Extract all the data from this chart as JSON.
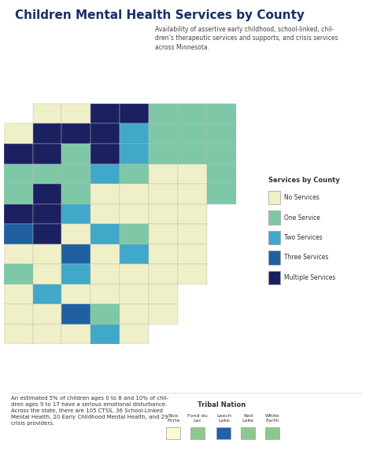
{
  "title": "Children Mental Health Services by County",
  "subtitle": "Availability of assertive early childhood, school-linked, chil-\ndren’s therapeutic services and supports, and crisis services\nacross Minnesota.",
  "footnote": "An estimated 5% of children ages 0 to 8 and 10% of chil-\ndren ages 9 to 17 have a serious emotional disturbance.\nAcross the state, there are 105 CTSS, 36 School-Linked\nMental Health, 20 Early Childhood Mental Health, and 29\ncrisis providers.",
  "legend_title": "Services by County",
  "legend_items": [
    "No Services",
    "One Service",
    "Two Services",
    "Three Services",
    "Multiple Services"
  ],
  "legend_colors": [
    "#f0f0c8",
    "#7ec8a8",
    "#40a8c8",
    "#2060a0",
    "#1a2060"
  ],
  "tribal_title": "Tribal Nation",
  "tribal_nations": [
    "Bois\nForte",
    "Fond du\nLac",
    "Leech\nLake",
    "Red\nLake",
    "White\nEarth"
  ],
  "tribal_colors": [
    "#fffacd",
    "#8dc88d",
    "#2060b0",
    "#8dc88d",
    "#8dc88d"
  ],
  "bg_color": "#ffffff",
  "title_color": "#1a2d6b",
  "county_colors": {
    "Aitkin": "#7ec8a8",
    "Anoka": "#2060a0",
    "Becker": "#1a2060",
    "Beltrami": "#1a2060",
    "Benton": "#40a8c8",
    "Big Stone": "#f0f0c8",
    "Blue Earth": "#40a8c8",
    "Brown": "#f0f0c8",
    "Carlton": "#40a8c8",
    "Carver": "#2060a0",
    "Cass": "#7ec8a8",
    "Chippewa": "#f0f0c8",
    "Chisago": "#7ec8a8",
    "Clay": "#1a2060",
    "Clearwater": "#7ec8a8",
    "Cook": "#7ec8a8",
    "Cottonwood": "#f0f0c8",
    "Crow Wing": "#2060a0",
    "Dakota": "#2060a0",
    "Dodge": "#f0f0c8",
    "Douglas": "#7ec8a8",
    "Faribault": "#f0f0c8",
    "Fillmore": "#f0f0c8",
    "Freeborn": "#f0f0c8",
    "Goodhue": "#7ec8a8",
    "Grant": "#f0f0c8",
    "Hennepin": "#1a2060",
    "Houston": "#f0f0c8",
    "Hubbard": "#7ec8a8",
    "Isanti": "#7ec8a8",
    "Itasca": "#7ec8a8",
    "Jackson": "#f0f0c8",
    "Kanabec": "#f0f0c8",
    "Kandiyohi": "#40a8c8",
    "Kittson": "#f0f0c8",
    "Koochiching": "#7ec8a8",
    "Lac qui Parle": "#f0f0c8",
    "Lake": "#7ec8a8",
    "Lake of the Woods": "#7ec8a8",
    "Le Sueur": "#7ec8a8",
    "Lincoln": "#f0f0c8",
    "Lyon": "#7ec8a8",
    "Mahnomen": "#f0f0c8",
    "Marshall": "#f0f0c8",
    "Martin": "#f0f0c8",
    "McLeod": "#f0f0c8",
    "Meeker": "#f0f0c8",
    "Mille Lacs": "#40a8c8",
    "Morrison": "#7ec8a8",
    "Mower": "#40a8c8",
    "Murray": "#f0f0c8",
    "Nicollet": "#40a8c8",
    "Nobles": "#f0f0c8",
    "Norman": "#f0f0c8",
    "Olmsted": "#2060a0",
    "Otter Tail": "#7ec8a8",
    "Pennington": "#7ec8a8",
    "Pine": "#7ec8a8",
    "Pipestone": "#f0f0c8",
    "Polk": "#40a8c8",
    "Pope": "#f0f0c8",
    "Ramsey": "#1a2060",
    "Red Lake": "#f0f0c8",
    "Redwood": "#f0f0c8",
    "Renville": "#f0f0c8",
    "Rice": "#40a8c8",
    "Rock": "#f0f0c8",
    "Roseau": "#7ec8a8",
    "Scott": "#2060a0",
    "Sherburne": "#40a8c8",
    "Sibley": "#f0f0c8",
    "St. Louis": "#40a8c8",
    "Stearns": "#1a2060",
    "Steele": "#7ec8a8",
    "Stevens": "#f0f0c8",
    "Swift": "#f0f0c8",
    "Todd": "#7ec8a8",
    "Traverse": "#f0f0c8",
    "Wabasha": "#f0f0c8",
    "Wadena": "#7ec8a8",
    "Waseca": "#f0f0c8",
    "Washington": "#2060a0",
    "Watonwan": "#f0f0c8",
    "Wilkin": "#f0f0c8",
    "Winona": "#7ec8a8",
    "Wright": "#40a8c8",
    "Yellow Medicine": "#f0f0c8"
  }
}
